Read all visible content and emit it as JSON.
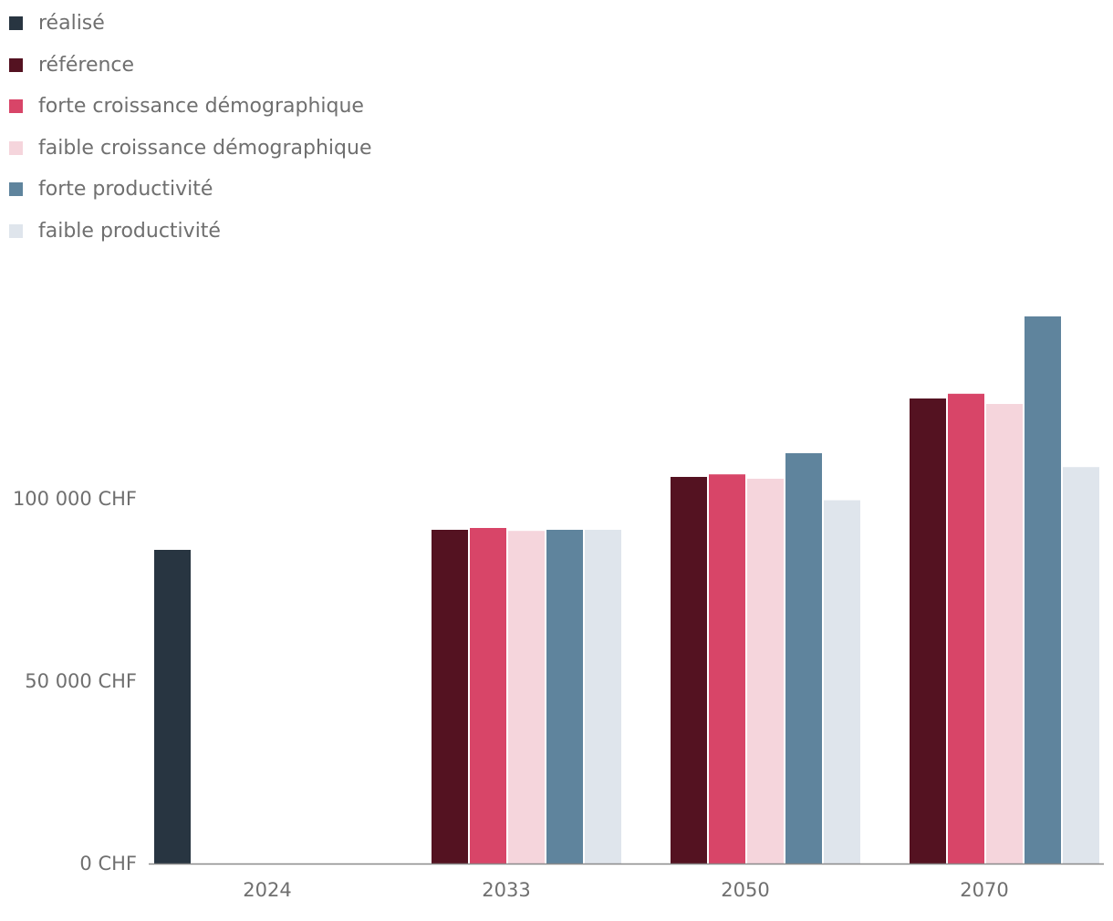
{
  "chart_data": {
    "type": "bar",
    "title": "",
    "xlabel": "",
    "ylabel": "",
    "categories": [
      "2024",
      "2033",
      "2050",
      "2070"
    ],
    "ylim": [
      0,
      150000
    ],
    "yticks": [
      0,
      50000,
      100000
    ],
    "ytick_labels": [
      "0 CHF",
      "50 000 CHF",
      "100 000 CHF"
    ],
    "grid": false,
    "legend_position": "top-left",
    "series": [
      {
        "name": "réalisé",
        "color": "#283541",
        "values": [
          86000,
          null,
          null,
          null
        ]
      },
      {
        "name": "référence",
        "color": "#541221",
        "values": [
          null,
          91500,
          106000,
          127500
        ]
      },
      {
        "name": "forte croissance démographique",
        "color": "#d84568",
        "values": [
          null,
          92000,
          106700,
          128800
        ]
      },
      {
        "name": "faible croissance démographique",
        "color": "#f5d5dc",
        "values": [
          null,
          91200,
          105500,
          126000
        ]
      },
      {
        "name": "forte productivité",
        "color": "#5f849d",
        "values": [
          null,
          91500,
          112500,
          150000
        ]
      },
      {
        "name": "faible productivité",
        "color": "#dfe5ec",
        "values": [
          null,
          91500,
          99600,
          108700
        ]
      }
    ]
  }
}
